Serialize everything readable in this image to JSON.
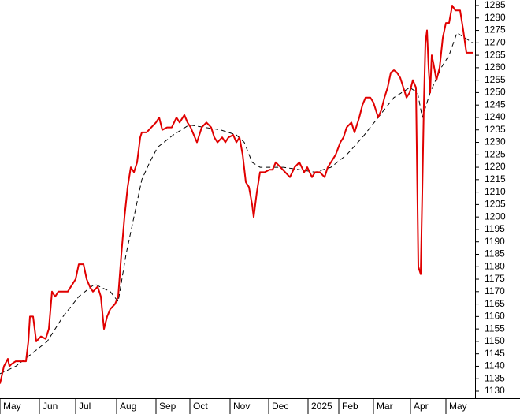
{
  "chart_data": {
    "type": "line",
    "xlim": [
      0,
      301.5
    ],
    "ylim": [
      1130,
      1285
    ],
    "xticks": [
      {
        "value": 0,
        "label": "May"
      },
      {
        "value": 25,
        "label": "Jun"
      },
      {
        "value": 48,
        "label": "Jul"
      },
      {
        "value": 74,
        "label": "Aug"
      },
      {
        "value": 99,
        "label": "Sep"
      },
      {
        "value": 120.5,
        "label": "Oct"
      },
      {
        "value": 146,
        "label": "Nov"
      },
      {
        "value": 170.5,
        "label": "Dec"
      },
      {
        "value": 195.5,
        "label": "2025"
      },
      {
        "value": 215,
        "label": "Feb"
      },
      {
        "value": 237,
        "label": "Mar"
      },
      {
        "value": 260.5,
        "label": "Apr"
      },
      {
        "value": 283,
        "label": "May"
      }
    ],
    "yticks": [
      1130,
      1135,
      1140,
      1145,
      1150,
      1155,
      1160,
      1165,
      1170,
      1175,
      1180,
      1185,
      1190,
      1195,
      1200,
      1205,
      1210,
      1215,
      1220,
      1225,
      1230,
      1235,
      1240,
      1245,
      1250,
      1255,
      1260,
      1265,
      1270,
      1275,
      1280,
      1285
    ],
    "series": [
      {
        "color": "#e00000",
        "style": "solid",
        "x": [
          0,
          2.5,
          5,
          6,
          7.5,
          10,
          14,
          16.5,
          18,
          19,
          21,
          23,
          26,
          29,
          31,
          33,
          35,
          37,
          40,
          43,
          46,
          48,
          50,
          53,
          55,
          57,
          59,
          62,
          64,
          66,
          68,
          70,
          73,
          75,
          77,
          79,
          81,
          83,
          85,
          87,
          89,
          90,
          93,
          96,
          99,
          101,
          103,
          106,
          109,
          112,
          114,
          117,
          119,
          121,
          123,
          125,
          128,
          131,
          134,
          136,
          138,
          141,
          143,
          145,
          148,
          150,
          152,
          154,
          156,
          158,
          160,
          161,
          163,
          165,
          168,
          171,
          173,
          175,
          178,
          181,
          184,
          187,
          190,
          193,
          195,
          198,
          200,
          203,
          206,
          208,
          210,
          213,
          216,
          218,
          220,
          223,
          225,
          228,
          230,
          232,
          235,
          237,
          240,
          242,
          244,
          246,
          248,
          250,
          252,
          254,
          256,
          258,
          260,
          262,
          264,
          265.5,
          267,
          268,
          269,
          270,
          271,
          272,
          273,
          274,
          275,
          277,
          279,
          281,
          283,
          285,
          287,
          289,
          292,
          294,
          296,
          300
        ],
        "values": [
          1133,
          1140,
          1143,
          1140,
          1141,
          1142,
          1142,
          1142,
          1150,
          1160,
          1160,
          1150,
          1152,
          1151,
          1155,
          1170,
          1168,
          1170,
          1170,
          1170,
          1173,
          1175,
          1181,
          1181,
          1175,
          1172,
          1170,
          1172,
          1168,
          1155,
          1160,
          1163,
          1165,
          1168,
          1185,
          1200,
          1212,
          1220,
          1218,
          1222,
          1232,
          1234,
          1234,
          1236,
          1238,
          1240,
          1235,
          1236,
          1236,
          1240,
          1238,
          1241,
          1238,
          1236,
          1233,
          1230,
          1236,
          1238,
          1236,
          1232,
          1230,
          1232,
          1230,
          1232,
          1233,
          1230,
          1232,
          1225,
          1214,
          1212,
          1205,
          1200,
          1210,
          1218,
          1218,
          1219,
          1219,
          1222,
          1220,
          1218,
          1216,
          1220,
          1222,
          1218,
          1220,
          1216,
          1218,
          1218,
          1216,
          1220,
          1222,
          1225,
          1230,
          1232,
          1236,
          1238,
          1234,
          1240,
          1245,
          1248,
          1248,
          1246,
          1240,
          1243,
          1248,
          1252,
          1258,
          1259,
          1258,
          1256,
          1252,
          1248,
          1250,
          1255,
          1252,
          1180,
          1177,
          1210,
          1245,
          1270,
          1275,
          1260,
          1250,
          1265,
          1262,
          1255,
          1260,
          1272,
          1278,
          1278,
          1285,
          1283,
          1283,
          1275,
          1266,
          1266
        ]
      },
      {
        "color": "#000000",
        "style": "dashed",
        "x": [
          0,
          10,
          20,
          30,
          40,
          50,
          60,
          70,
          75,
          80,
          85,
          90,
          95,
          100,
          110,
          120,
          130,
          140,
          150,
          155,
          160,
          165,
          170,
          180,
          190,
          200,
          210,
          220,
          230,
          240,
          250,
          260,
          265,
          268,
          273,
          280,
          285,
          290,
          295,
          300
        ],
        "values": [
          1137,
          1140,
          1145,
          1150,
          1160,
          1168,
          1173,
          1170,
          1166,
          1185,
          1200,
          1215,
          1222,
          1228,
          1233,
          1237,
          1236,
          1235,
          1233,
          1230,
          1222,
          1220,
          1220,
          1220,
          1219,
          1218,
          1220,
          1225,
          1232,
          1240,
          1248,
          1252,
          1250,
          1240,
          1250,
          1260,
          1265,
          1274,
          1272,
          1270
        ]
      }
    ]
  }
}
